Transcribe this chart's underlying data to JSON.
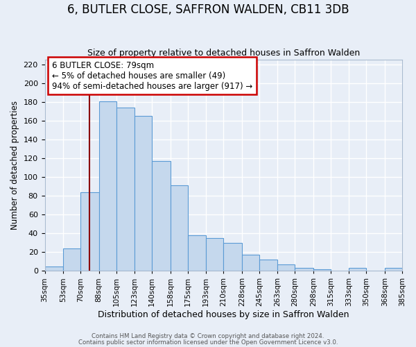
{
  "title": "6, BUTLER CLOSE, SAFFRON WALDEN, CB11 3DB",
  "subtitle": "Size of property relative to detached houses in Saffron Walden",
  "xlabel": "Distribution of detached houses by size in Saffron Walden",
  "ylabel": "Number of detached properties",
  "bar_values": [
    5,
    24,
    84,
    181,
    174,
    165,
    117,
    91,
    38,
    35,
    30,
    17,
    12,
    7,
    3,
    2,
    0,
    3,
    0,
    3
  ],
  "bin_edges": [
    35,
    53,
    70,
    88,
    105,
    123,
    140,
    158,
    175,
    193,
    210,
    228,
    245,
    263,
    280,
    298,
    315,
    333,
    350,
    368,
    385
  ],
  "tick_labels": [
    "35sqm",
    "53sqm",
    "70sqm",
    "88sqm",
    "105sqm",
    "123sqm",
    "140sqm",
    "158sqm",
    "175sqm",
    "193sqm",
    "210sqm",
    "228sqm",
    "245sqm",
    "263sqm",
    "280sqm",
    "298sqm",
    "315sqm",
    "333sqm",
    "350sqm",
    "368sqm",
    "385sqm"
  ],
  "bar_color": "#c5d8ed",
  "bar_edge_color": "#5b9bd5",
  "vline_x": 79,
  "vline_color": "#8b0000",
  "ylim": [
    0,
    225
  ],
  "yticks": [
    0,
    20,
    40,
    60,
    80,
    100,
    120,
    140,
    160,
    180,
    200,
    220
  ],
  "annotation_title": "6 BUTLER CLOSE: 79sqm",
  "annotation_line1": "← 5% of detached houses are smaller (49)",
  "annotation_line2": "94% of semi-detached houses are larger (917) →",
  "annotation_box_color": "#ffffff",
  "annotation_box_edge": "#cc0000",
  "footer1": "Contains HM Land Registry data © Crown copyright and database right 2024.",
  "footer2": "Contains public sector information licensed under the Open Government Licence v3.0.",
  "bg_color": "#e8eef7",
  "plot_bg_color": "#e8eef7",
  "grid_color": "#ffffff",
  "title_fontsize": 12,
  "subtitle_fontsize": 9
}
